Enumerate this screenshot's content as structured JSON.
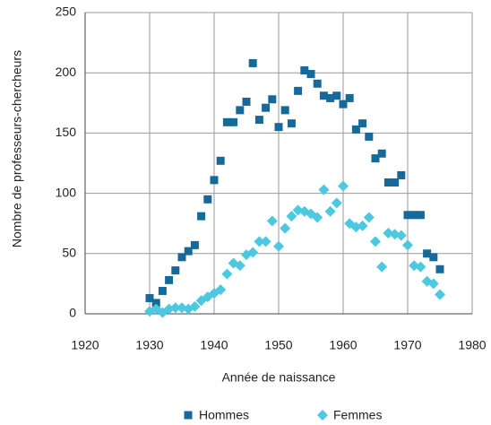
{
  "chart_data": {
    "type": "scatter",
    "x_label": "Année de naissance",
    "y_label": "Nombre de professeurs-chercheurs",
    "x": [
      1930,
      1931,
      1932,
      1933,
      1934,
      1935,
      1936,
      1937,
      1938,
      1939,
      1940,
      1941,
      1942,
      1943,
      1944,
      1945,
      1946,
      1947,
      1948,
      1949,
      1950,
      1951,
      1952,
      1953,
      1954,
      1955,
      1956,
      1957,
      1958,
      1959,
      1960,
      1961,
      1962,
      1963,
      1964,
      1965,
      1966,
      1967,
      1968,
      1969,
      1970,
      1971,
      1972,
      1973,
      1974,
      1975
    ],
    "series": [
      {
        "name": "Hommes",
        "color": "#17699a",
        "marker": "square",
        "values": [
          13,
          9,
          19,
          28,
          36,
          47,
          52,
          57,
          81,
          95,
          111,
          127,
          159,
          159,
          169,
          176,
          208,
          161,
          171,
          178,
          155,
          169,
          158,
          185,
          202,
          199,
          191,
          181,
          179,
          181,
          174,
          179,
          153,
          158,
          147,
          129,
          133,
          109,
          109,
          115,
          82,
          82,
          82,
          50,
          47,
          37
        ]
      },
      {
        "name": "Femmes",
        "color": "#4cc8e0",
        "marker": "diamond",
        "values": [
          2,
          4,
          1,
          4,
          5,
          5,
          4,
          6,
          11,
          14,
          17,
          20,
          33,
          42,
          40,
          49,
          51,
          60,
          60,
          77,
          56,
          71,
          81,
          86,
          85,
          83,
          80,
          103,
          85,
          92,
          106,
          75,
          72,
          73,
          80,
          60,
          39,
          67,
          66,
          65,
          57,
          40,
          39,
          27,
          25,
          16
        ]
      }
    ],
    "xlim": [
      1920,
      1980
    ],
    "xticks": [
      1920,
      1930,
      1940,
      1950,
      1960,
      1970,
      1980
    ],
    "ylim": [
      0,
      250
    ],
    "yticks": [
      0,
      50,
      100,
      150,
      200,
      250
    ],
    "grid": true,
    "legend": "bottom"
  }
}
